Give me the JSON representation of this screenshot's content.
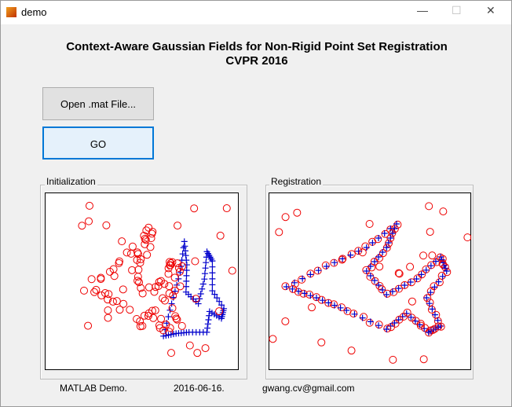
{
  "window": {
    "title": "demo"
  },
  "header": {
    "title": [
      "Context-Aware Gaussian Fields for Non-Rigid Point Set Registration",
      "CVPR 2016"
    ]
  },
  "buttons": [
    "Open .mat File...",
    "GO"
  ],
  "panels": [
    {
      "title": "Initialization"
    },
    {
      "title": "Registration"
    }
  ],
  "footer": [
    "MATLAB Demo.",
    "2016-06-16.",
    "gwang.cv@gmail.com"
  ]
}
